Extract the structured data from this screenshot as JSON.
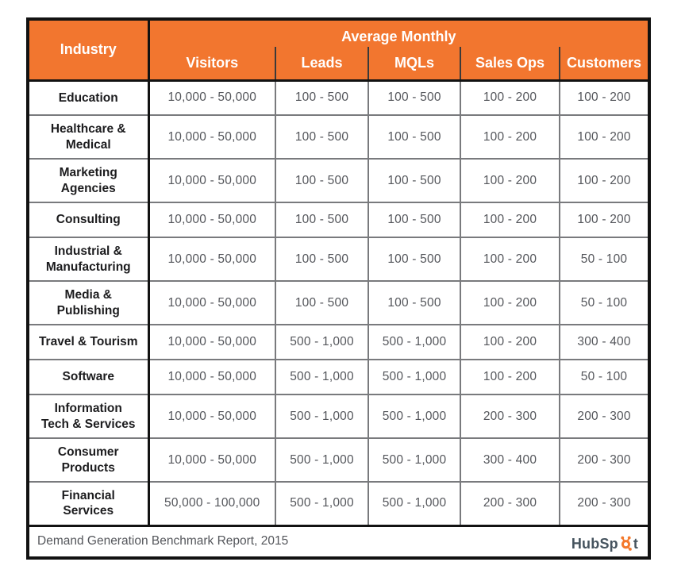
{
  "colors": {
    "header_orange": "#F2762F",
    "sprocket_orange": "#F4792C",
    "logo_slate": "#45535E",
    "value_text": "#54565B",
    "industry_text": "#1C1C1E",
    "major_border": "#121212",
    "inner_border": "#797A7D"
  },
  "chart_data": {
    "type": "table",
    "title": "Average Monthly",
    "row_header": "Industry",
    "columns": [
      "Visitors",
      "Leads",
      "MQLs",
      "Sales Ops",
      "Customers"
    ],
    "rows": [
      {
        "industry": "Education",
        "industry_lines": [
          "Education"
        ],
        "values": [
          "10,000 - 50,000",
          "100 - 500",
          "100 - 500",
          "100 - 200",
          "100 - 200"
        ]
      },
      {
        "industry": "Healthcare & Medical",
        "industry_lines": [
          "Healthcare &",
          "Medical"
        ],
        "values": [
          "10,000 - 50,000",
          "100 - 500",
          "100 - 500",
          "100 - 200",
          "100 - 200"
        ]
      },
      {
        "industry": "Marketing Agencies",
        "industry_lines": [
          "Marketing",
          "Agencies"
        ],
        "values": [
          "10,000 - 50,000",
          "100 - 500",
          "100 - 500",
          "100 - 200",
          "100 - 200"
        ]
      },
      {
        "industry": "Consulting",
        "industry_lines": [
          "Consulting"
        ],
        "values": [
          "10,000 - 50,000",
          "100 - 500",
          "100 - 500",
          "100 - 200",
          "100 - 200"
        ]
      },
      {
        "industry": "Industrial & Manufacturing",
        "industry_lines": [
          "Industrial &",
          "Manufacturing"
        ],
        "values": [
          "10,000 - 50,000",
          "100 - 500",
          "100 - 500",
          "100 - 200",
          "50 - 100"
        ]
      },
      {
        "industry": "Media & Publishing",
        "industry_lines": [
          "Media &",
          "Publishing"
        ],
        "values": [
          "10,000 - 50,000",
          "100 - 500",
          "100 - 500",
          "100 - 200",
          "50 - 100"
        ]
      },
      {
        "industry": "Travel & Tourism",
        "industry_lines": [
          "Travel & Tourism"
        ],
        "values": [
          "10,000 - 50,000",
          "500 - 1,000",
          "500 - 1,000",
          "100 - 200",
          "300 - 400"
        ]
      },
      {
        "industry": "Software",
        "industry_lines": [
          "Software"
        ],
        "values": [
          "10,000 - 50,000",
          "500 - 1,000",
          "500 - 1,000",
          "100 - 200",
          "50 - 100"
        ]
      },
      {
        "industry": "Information Tech & Services",
        "industry_lines": [
          "Information",
          "Tech & Services"
        ],
        "values": [
          "10,000 - 50,000",
          "500 - 1,000",
          "500 - 1,000",
          "200 - 300",
          "200 - 300"
        ]
      },
      {
        "industry": "Consumer Products",
        "industry_lines": [
          "Consumer",
          "Products"
        ],
        "values": [
          "10,000 - 50,000",
          "500 - 1,000",
          "500 - 1,000",
          "300 - 400",
          "200 - 300"
        ]
      },
      {
        "industry": "Financial Services",
        "industry_lines": [
          "Financial",
          "Services"
        ],
        "values": [
          "50,000 - 100,000",
          "500 - 1,000",
          "500 - 1,000",
          "200 - 300",
          "200 - 300"
        ]
      }
    ]
  },
  "footer": {
    "caption": "Demand Generation Benchmark Report, 2015",
    "logo_pre": "HubSp",
    "logo_post": "t"
  }
}
